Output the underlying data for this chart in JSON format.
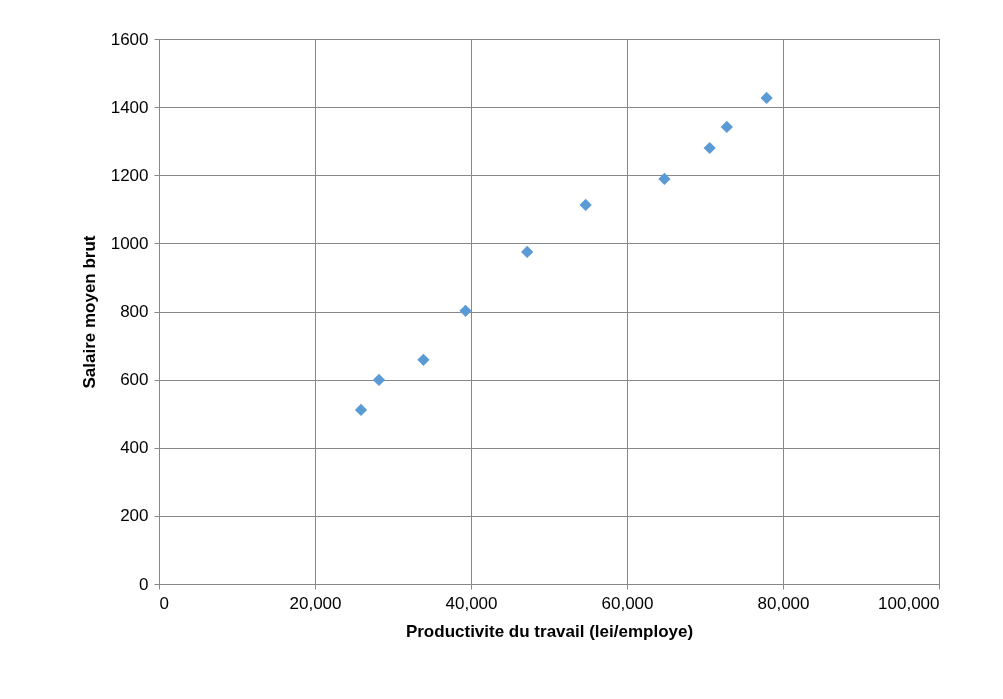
{
  "chart_data": {
    "type": "scatter",
    "xlabel": "Productivite du travail (lei/employe)",
    "ylabel": "Salaire moyen brut",
    "x": [
      25900,
      28200,
      33900,
      39300,
      47200,
      54700,
      64800,
      70600,
      72800,
      77900
    ],
    "series": [
      {
        "color": "#5b9bd5",
        "values": [
          511,
          599,
          658,
          802,
          975,
          1113,
          1189,
          1280,
          1342,
          1427
        ]
      }
    ],
    "xlim": [
      0,
      100000
    ],
    "ylim": [
      0,
      1600
    ],
    "xticks": [
      {
        "value": 0,
        "label": "0"
      },
      {
        "value": 20000,
        "label": "20,000"
      },
      {
        "value": 40000,
        "label": "40,000"
      },
      {
        "value": 60000,
        "label": "60,000"
      },
      {
        "value": 80000,
        "label": "80,000"
      },
      {
        "value": 100000,
        "label": "100,000"
      }
    ],
    "yticks": [
      0,
      200,
      400,
      600,
      800,
      1000,
      1200,
      1400,
      1600
    ],
    "grid": true,
    "marker": "diamond"
  }
}
